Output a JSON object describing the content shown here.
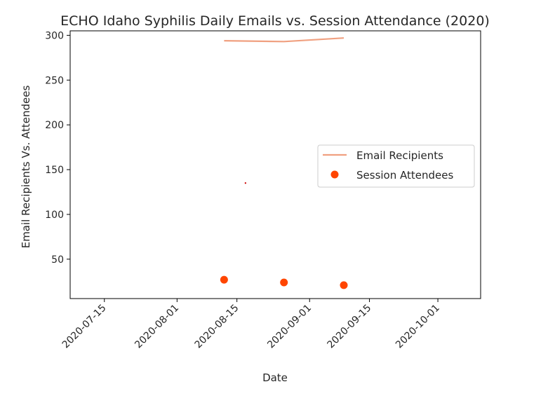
{
  "chart_data": {
    "type": "line",
    "title": "ECHO Idaho Syphilis Daily Emails vs. Session Attendance (2020)",
    "xlabel": "Date",
    "ylabel": "Email Recipients Vs. Attendees",
    "x_axis_type": "date",
    "xlim": [
      "2020-07-07",
      "2020-10-11"
    ],
    "ylim": [
      6,
      305
    ],
    "x_ticks": [
      "2020-07-15",
      "2020-08-01",
      "2020-08-15",
      "2020-09-01",
      "2020-09-15",
      "2020-10-01"
    ],
    "y_ticks": [
      50,
      100,
      150,
      200,
      250,
      300
    ],
    "grid": false,
    "legend_position": "center-right",
    "series": [
      {
        "name": "Email Recipients",
        "kind": "line",
        "color": "#f0a080",
        "x": [
          "2020-08-12",
          "2020-08-26",
          "2020-09-09"
        ],
        "y": [
          294,
          293,
          297
        ]
      },
      {
        "name": "Session Attendees",
        "kind": "scatter",
        "color": "#ff4500",
        "x": [
          "2020-08-12",
          "2020-08-26",
          "2020-09-09"
        ],
        "y": [
          27,
          24,
          21
        ]
      }
    ],
    "annotations": [
      {
        "kind": "point",
        "color": "#cc0000",
        "x": "2020-08-17",
        "y": 135
      }
    ]
  }
}
